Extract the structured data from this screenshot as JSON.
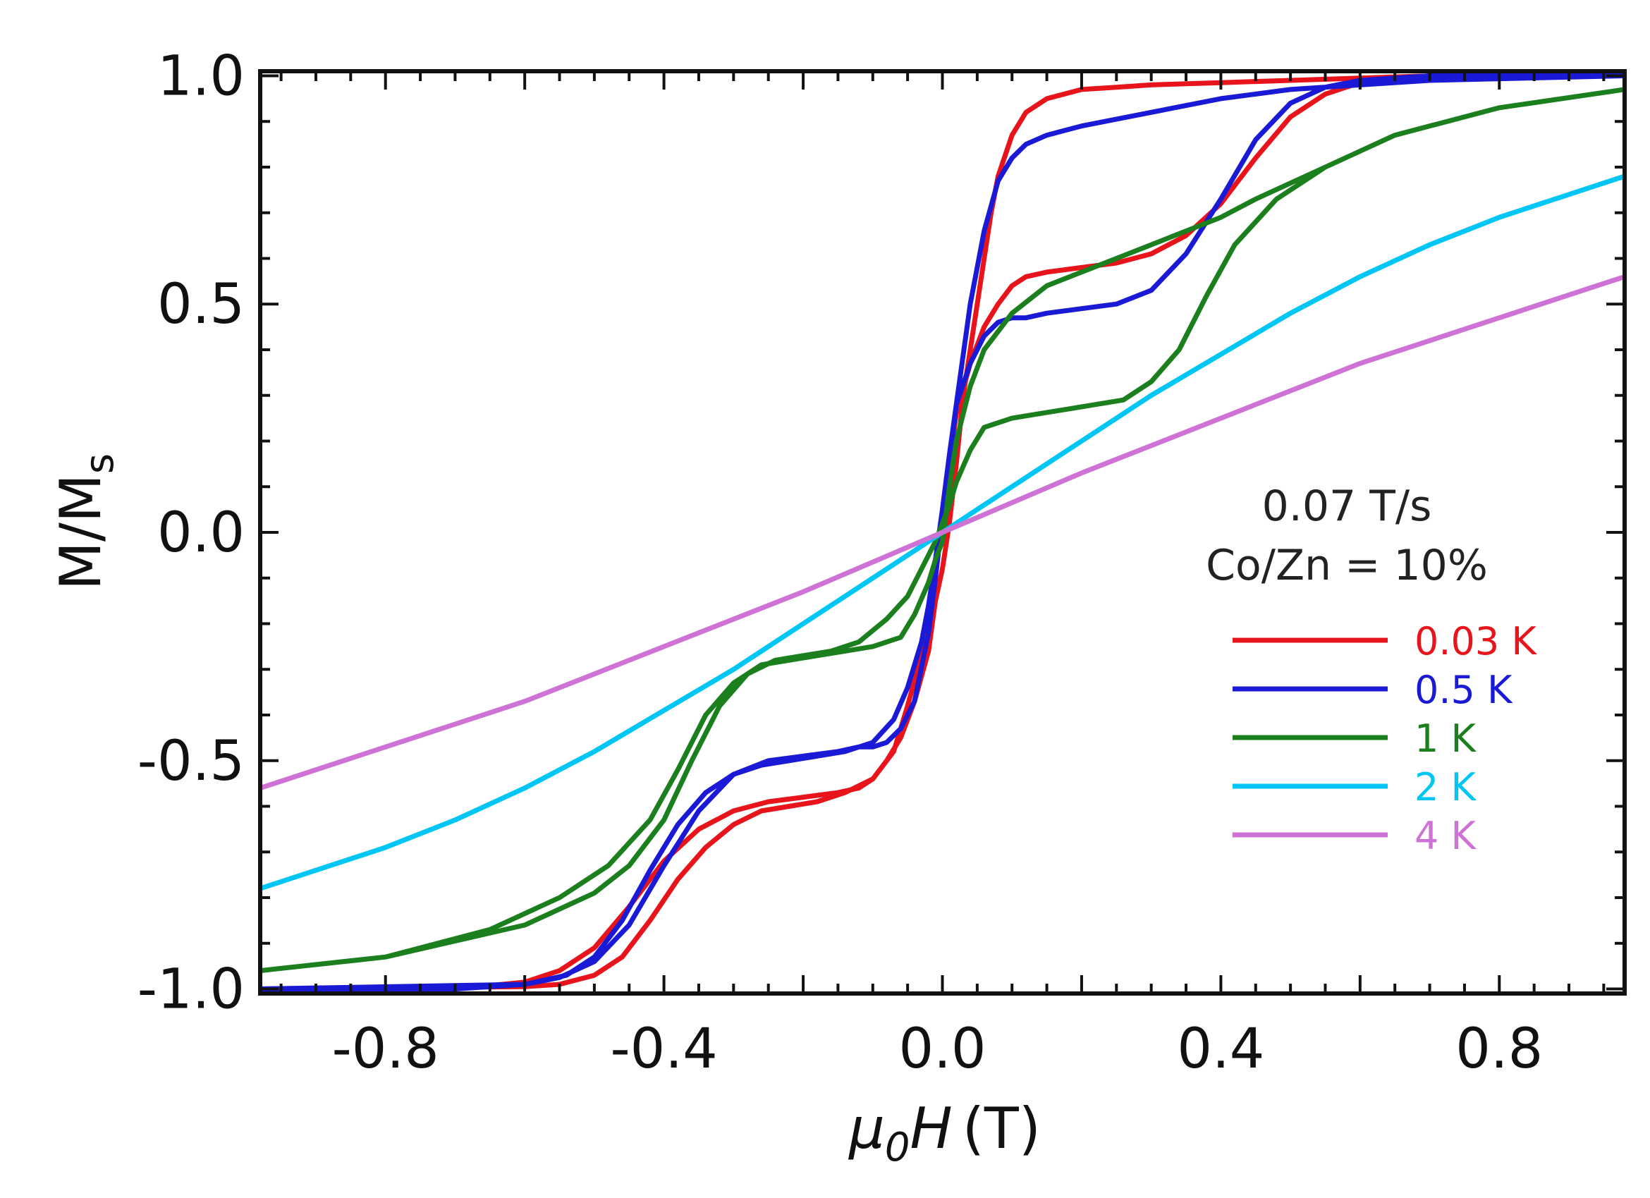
{
  "chart_data": {
    "type": "line",
    "xlabel_symbol": "μ",
    "xlabel_subscript": "0",
    "xlabel_var": "H",
    "xlabel_unit": "(T)",
    "ylabel_main": "M/M",
    "ylabel_subscript": "s",
    "xlim": [
      -0.98,
      0.98
    ],
    "ylim": [
      -1.01,
      1.01
    ],
    "x_ticks": [
      -0.8,
      -0.4,
      0.0,
      0.4,
      0.8
    ],
    "x_tick_labels": [
      "-0.8",
      "-0.4",
      "0.0",
      "0.4",
      "0.8"
    ],
    "y_ticks": [
      -1.0,
      -0.5,
      0.0,
      0.5,
      1.0
    ],
    "y_tick_labels": [
      "-1.0",
      "-0.5",
      "0.0",
      "0.5",
      "1.0"
    ],
    "grid": false,
    "legend_position": "right",
    "annotations": [
      "0.07 T/s",
      "Co/Zn = 10%"
    ],
    "series": [
      {
        "name": "0.03 K",
        "color": "#e8141c",
        "x": [
          -0.98,
          -0.6,
          -0.55,
          -0.5,
          -0.46,
          -0.42,
          -0.38,
          -0.34,
          -0.3,
          -0.26,
          -0.22,
          -0.18,
          -0.14,
          -0.1,
          -0.07,
          -0.05,
          -0.03,
          -0.02,
          -0.01,
          0.0,
          0.01,
          0.02,
          0.04,
          0.06,
          0.08,
          0.1,
          0.12,
          0.15,
          0.2,
          0.25,
          0.3,
          0.35,
          0.4,
          0.45,
          0.5,
          0.55,
          0.6,
          0.7,
          0.98,
          0.7,
          0.6,
          0.5,
          0.4,
          0.3,
          0.25,
          0.2,
          0.15,
          0.12,
          0.1,
          0.08,
          0.07,
          0.05,
          0.03,
          0.02,
          0.01,
          0.0,
          -0.01,
          -0.02,
          -0.04,
          -0.06,
          -0.08,
          -0.1,
          -0.12,
          -0.15,
          -0.2,
          -0.25,
          -0.3,
          -0.35,
          -0.4,
          -0.45,
          -0.5,
          -0.55,
          -0.6,
          -0.7,
          -0.98
        ],
        "y": [
          -1.0,
          -0.995,
          -0.99,
          -0.97,
          -0.93,
          -0.85,
          -0.76,
          -0.69,
          -0.64,
          -0.61,
          -0.6,
          -0.59,
          -0.57,
          -0.54,
          -0.48,
          -0.38,
          -0.27,
          -0.18,
          -0.08,
          0.03,
          0.15,
          0.26,
          0.37,
          0.45,
          0.5,
          0.54,
          0.56,
          0.57,
          0.58,
          0.59,
          0.61,
          0.65,
          0.72,
          0.82,
          0.91,
          0.96,
          0.985,
          1.0,
          1.0,
          1.0,
          0.995,
          0.99,
          0.985,
          0.98,
          0.975,
          0.97,
          0.95,
          0.92,
          0.87,
          0.78,
          0.7,
          0.5,
          0.3,
          0.15,
          0.02,
          -0.08,
          -0.15,
          -0.26,
          -0.37,
          -0.45,
          -0.5,
          -0.54,
          -0.56,
          -0.57,
          -0.58,
          -0.59,
          -0.61,
          -0.65,
          -0.72,
          -0.82,
          -0.91,
          -0.96,
          -0.985,
          -1.0,
          -1.0
        ]
      },
      {
        "name": "0.5 K",
        "color": "#1a1ad6",
        "x": [
          -0.98,
          -0.6,
          -0.54,
          -0.5,
          -0.46,
          -0.42,
          -0.38,
          -0.34,
          -0.3,
          -0.26,
          -0.22,
          -0.18,
          -0.14,
          -0.1,
          -0.07,
          -0.05,
          -0.03,
          -0.02,
          -0.01,
          0.0,
          0.01,
          0.02,
          0.04,
          0.06,
          0.08,
          0.1,
          0.12,
          0.15,
          0.2,
          0.25,
          0.3,
          0.35,
          0.4,
          0.45,
          0.5,
          0.55,
          0.6,
          0.7,
          0.98,
          0.7,
          0.6,
          0.5,
          0.45,
          0.4,
          0.3,
          0.2,
          0.15,
          0.12,
          0.1,
          0.08,
          0.06,
          0.04,
          0.02,
          0.01,
          0.0,
          -0.01,
          -0.02,
          -0.04,
          -0.06,
          -0.08,
          -0.1,
          -0.12,
          -0.15,
          -0.2,
          -0.25,
          -0.3,
          -0.35,
          -0.4,
          -0.45,
          -0.5,
          -0.55,
          -0.6,
          -0.7,
          -0.98
        ],
        "y": [
          -1.0,
          -0.99,
          -0.97,
          -0.93,
          -0.85,
          -0.74,
          -0.64,
          -0.57,
          -0.53,
          -0.51,
          -0.5,
          -0.49,
          -0.48,
          -0.46,
          -0.41,
          -0.34,
          -0.24,
          -0.16,
          -0.06,
          0.05,
          0.17,
          0.28,
          0.37,
          0.43,
          0.46,
          0.47,
          0.47,
          0.48,
          0.49,
          0.5,
          0.53,
          0.61,
          0.73,
          0.86,
          0.94,
          0.975,
          0.99,
          1.0,
          1.0,
          0.99,
          0.98,
          0.97,
          0.96,
          0.95,
          0.92,
          0.89,
          0.87,
          0.85,
          0.82,
          0.77,
          0.66,
          0.5,
          0.28,
          0.15,
          0.03,
          -0.1,
          -0.22,
          -0.37,
          -0.43,
          -0.46,
          -0.47,
          -0.47,
          -0.48,
          -0.49,
          -0.5,
          -0.53,
          -0.61,
          -0.73,
          -0.86,
          -0.94,
          -0.975,
          -0.99,
          -1.0,
          -1.0
        ]
      },
      {
        "name": "1 K",
        "color": "#1b7f1e",
        "x": [
          -0.98,
          -0.8,
          -0.6,
          -0.5,
          -0.45,
          -0.4,
          -0.36,
          -0.32,
          -0.28,
          -0.24,
          -0.2,
          -0.16,
          -0.12,
          -0.08,
          -0.05,
          -0.03,
          -0.01,
          0.0,
          0.01,
          0.02,
          0.04,
          0.06,
          0.1,
          0.14,
          0.18,
          0.22,
          0.26,
          0.3,
          0.34,
          0.38,
          0.42,
          0.48,
          0.55,
          0.65,
          0.8,
          0.98,
          0.8,
          0.65,
          0.55,
          0.45,
          0.4,
          0.35,
          0.3,
          0.25,
          0.2,
          0.15,
          0.1,
          0.06,
          0.04,
          0.02,
          0.01,
          0.0,
          -0.01,
          -0.02,
          -0.04,
          -0.06,
          -0.1,
          -0.14,
          -0.18,
          -0.22,
          -0.26,
          -0.3,
          -0.34,
          -0.38,
          -0.42,
          -0.48,
          -0.55,
          -0.65,
          -0.8,
          -0.98
        ],
        "y": [
          -0.96,
          -0.93,
          -0.86,
          -0.79,
          -0.73,
          -0.63,
          -0.5,
          -0.38,
          -0.31,
          -0.28,
          -0.27,
          -0.26,
          -0.24,
          -0.19,
          -0.14,
          -0.08,
          -0.02,
          0.02,
          0.06,
          0.11,
          0.18,
          0.23,
          0.25,
          0.26,
          0.27,
          0.28,
          0.29,
          0.33,
          0.4,
          0.52,
          0.63,
          0.73,
          0.8,
          0.87,
          0.93,
          0.97,
          0.93,
          0.87,
          0.8,
          0.73,
          0.69,
          0.66,
          0.63,
          0.6,
          0.57,
          0.54,
          0.48,
          0.4,
          0.32,
          0.2,
          0.1,
          -0.02,
          -0.06,
          -0.11,
          -0.18,
          -0.23,
          -0.25,
          -0.26,
          -0.27,
          -0.28,
          -0.29,
          -0.33,
          -0.4,
          -0.52,
          -0.63,
          -0.73,
          -0.8,
          -0.87,
          -0.93,
          -0.96
        ]
      },
      {
        "name": "2 K",
        "color": "#00c6f5",
        "x": [
          -0.98,
          -0.9,
          -0.8,
          -0.7,
          -0.6,
          -0.5,
          -0.4,
          -0.3,
          -0.2,
          -0.1,
          0.0,
          0.1,
          0.2,
          0.3,
          0.4,
          0.5,
          0.6,
          0.7,
          0.8,
          0.9,
          0.98
        ],
        "y": [
          -0.78,
          -0.74,
          -0.69,
          -0.63,
          -0.56,
          -0.48,
          -0.39,
          -0.3,
          -0.2,
          -0.1,
          0.0,
          0.1,
          0.2,
          0.3,
          0.39,
          0.48,
          0.56,
          0.63,
          0.69,
          0.74,
          0.78
        ]
      },
      {
        "name": "4 K",
        "color": "#cf72d6",
        "x": [
          -0.98,
          -0.8,
          -0.6,
          -0.4,
          -0.2,
          0.0,
          0.2,
          0.4,
          0.6,
          0.8,
          0.98
        ],
        "y": [
          -0.56,
          -0.47,
          -0.37,
          -0.25,
          -0.13,
          0.0,
          0.13,
          0.25,
          0.37,
          0.47,
          0.56
        ]
      }
    ]
  }
}
